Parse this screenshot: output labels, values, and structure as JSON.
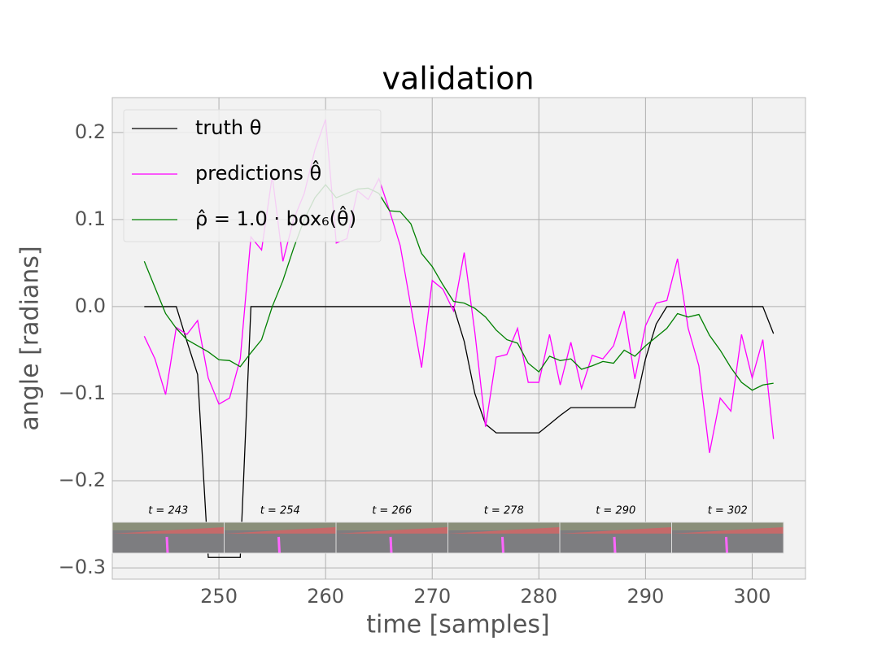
{
  "chart_data": {
    "type": "line",
    "title": "validation",
    "xlabel": "time [samples]",
    "ylabel": "angle [radians]",
    "x": [
      243,
      244,
      245,
      246,
      247,
      248,
      249,
      250,
      251,
      252,
      253,
      254,
      255,
      256,
      257,
      258,
      259,
      260,
      261,
      262,
      263,
      264,
      265,
      266,
      267,
      268,
      269,
      270,
      271,
      272,
      273,
      274,
      275,
      276,
      277,
      278,
      279,
      280,
      281,
      282,
      283,
      284,
      285,
      286,
      287,
      288,
      289,
      290,
      291,
      292,
      293,
      294,
      295,
      296,
      297,
      298,
      299,
      300,
      301,
      302
    ],
    "series": [
      {
        "name": "truth θ",
        "color": "#000000",
        "values": [
          0,
          0,
          0,
          0,
          -0.04,
          -0.078,
          -0.288,
          -0.288,
          -0.288,
          -0.288,
          0,
          0,
          0,
          0,
          0,
          0,
          0,
          0,
          0,
          0,
          0,
          0,
          0,
          0,
          0,
          0,
          0,
          0,
          0,
          0,
          -0.04,
          -0.1,
          -0.135,
          -0.145,
          -0.145,
          -0.145,
          -0.145,
          -0.145,
          -0.135,
          -0.125,
          -0.116,
          -0.116,
          -0.116,
          -0.116,
          -0.116,
          -0.116,
          -0.116,
          -0.06,
          -0.02,
          0,
          0,
          0,
          0,
          0,
          0,
          0,
          0,
          0,
          0,
          -0.031
        ]
      },
      {
        "name": "predictions θ̂",
        "color": "#ff00ff",
        "values": [
          -0.034,
          -0.06,
          -0.101,
          -0.024,
          -0.032,
          -0.016,
          -0.082,
          -0.112,
          -0.105,
          -0.06,
          0.08,
          0.065,
          0.15,
          0.052,
          0.1,
          0.13,
          0.18,
          0.215,
          0.073,
          0.078,
          0.133,
          0.123,
          0.147,
          0.11,
          0.07,
          0.0,
          -0.07,
          0.03,
          0.02,
          -0.005,
          0.062,
          -0.03,
          -0.138,
          -0.058,
          -0.055,
          -0.025,
          -0.087,
          -0.087,
          -0.032,
          -0.09,
          -0.041,
          -0.094,
          -0.056,
          -0.06,
          -0.045,
          -0.005,
          -0.083,
          -0.022,
          0.004,
          0.007,
          0.055,
          -0.025,
          -0.068,
          -0.168,
          -0.105,
          -0.12,
          -0.032,
          -0.082,
          -0.038,
          -0.152
        ]
      },
      {
        "name": "ρ̂ = 1.0 · box₆(θ̂)",
        "color": "#008000",
        "values": [
          0.052,
          0.022,
          -0.008,
          -0.025,
          -0.038,
          -0.045,
          -0.052,
          -0.061,
          -0.062,
          -0.069,
          -0.053,
          -0.038,
          0.0,
          0.03,
          0.067,
          0.1,
          0.125,
          0.14,
          0.125,
          0.13,
          0.135,
          0.136,
          0.13,
          0.11,
          0.109,
          0.095,
          0.061,
          0.046,
          0.025,
          0.006,
          0.004,
          -0.002,
          -0.012,
          -0.027,
          -0.038,
          -0.042,
          -0.065,
          -0.075,
          -0.057,
          -0.062,
          -0.06,
          -0.072,
          -0.068,
          -0.063,
          -0.065,
          -0.05,
          -0.057,
          -0.045,
          -0.035,
          -0.025,
          -0.008,
          -0.012,
          -0.009,
          -0.033,
          -0.05,
          -0.07,
          -0.087,
          -0.096,
          -0.09,
          -0.088
        ]
      }
    ],
    "xlim": [
      240,
      305
    ],
    "ylim": [
      -0.313,
      0.24
    ],
    "xticks": [
      250,
      260,
      270,
      280,
      290,
      300
    ],
    "yticks": [
      {
        "value": -0.3,
        "label": "−0.3"
      },
      {
        "value": -0.2,
        "label": "−0.2"
      },
      {
        "value": -0.1,
        "label": "−0.1"
      },
      {
        "value": 0,
        "label": "0.0"
      },
      0.1,
      0.2
    ],
    "grid": true,
    "legend": "upper left",
    "thumbnail_labels": [
      "t = 243",
      "t = 254",
      "t = 266",
      "t = 278",
      "t = 290",
      "t = 302"
    ]
  }
}
